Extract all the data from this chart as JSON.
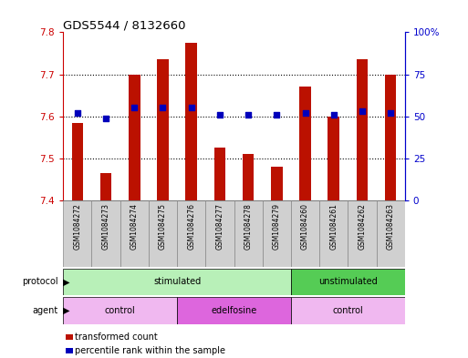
{
  "title": "GDS5544 / 8132660",
  "samples": [
    "GSM1084272",
    "GSM1084273",
    "GSM1084274",
    "GSM1084275",
    "GSM1084276",
    "GSM1084277",
    "GSM1084278",
    "GSM1084279",
    "GSM1084260",
    "GSM1084261",
    "GSM1084262",
    "GSM1084263"
  ],
  "transformed_count": [
    7.585,
    7.465,
    7.7,
    7.735,
    7.775,
    7.525,
    7.51,
    7.48,
    7.67,
    7.6,
    7.735,
    7.7
  ],
  "percentile_rank": [
    52,
    49,
    55,
    55,
    55,
    51,
    51,
    51,
    52,
    51,
    53,
    52
  ],
  "ylim_left": [
    7.4,
    7.8
  ],
  "ylim_right": [
    0,
    100
  ],
  "yticks_left": [
    7.4,
    7.5,
    7.6,
    7.7,
    7.8
  ],
  "yticks_right": [
    0,
    25,
    50,
    75,
    100
  ],
  "ytick_labels_right": [
    "0",
    "25",
    "50",
    "75",
    "100%"
  ],
  "grid_yticks": [
    7.5,
    7.6,
    7.7
  ],
  "protocol_groups": [
    {
      "label": "stimulated",
      "start": 0,
      "end": 8,
      "color": "#b8f0b8"
    },
    {
      "label": "unstimulated",
      "start": 8,
      "end": 12,
      "color": "#55cc55"
    }
  ],
  "agent_groups": [
    {
      "label": "control",
      "start": 0,
      "end": 4,
      "color": "#f0b8f0"
    },
    {
      "label": "edelfosine",
      "start": 4,
      "end": 8,
      "color": "#dd66dd"
    },
    {
      "label": "control",
      "start": 8,
      "end": 12,
      "color": "#f0b8f0"
    }
  ],
  "bar_color": "#bb1100",
  "dot_color": "#0000bb",
  "bar_width": 0.4,
  "dot_size": 22,
  "legend_items": [
    "transformed count",
    "percentile rank within the sample"
  ],
  "legend_colors": [
    "#bb1100",
    "#0000bb"
  ],
  "bg_color": "#ffffff",
  "left_tick_color": "#cc0000",
  "right_tick_color": "#0000cc",
  "sample_bg": "#d0d0d0"
}
